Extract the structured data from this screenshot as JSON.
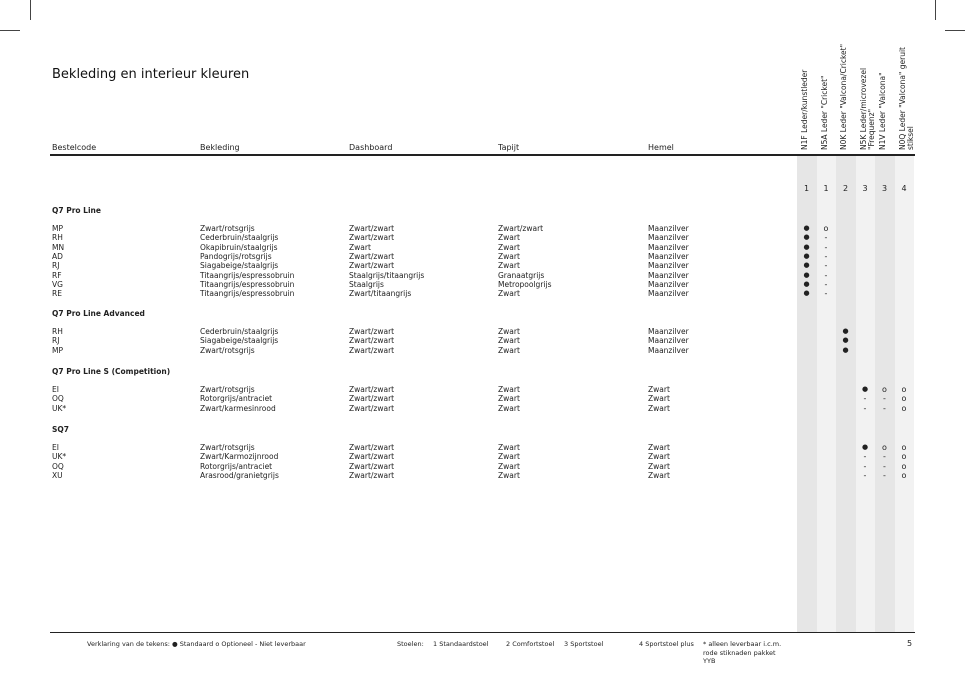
{
  "title": "Bekleding en interieur kleuren",
  "headers": [
    "Bestelcode",
    "Bekleding",
    "Dashboard",
    "Tapijt",
    "Hemel"
  ],
  "option_columns": [
    {
      "label": "N1F Leder/kunstleder",
      "seat": "1"
    },
    {
      "label": "N5A Leder \"Cricket\"",
      "seat": "1"
    },
    {
      "label": "N0K Leder \"Valcona/Cricket\"",
      "seat": "2"
    },
    {
      "label": "N5K Leder/microvezel\n\"Frequenz\"",
      "seat": "3"
    },
    {
      "label": "N1V Leder \"Valcona\"",
      "seat": "3"
    },
    {
      "label": "N0Q Leder \"Valcona\" geruit\nstiksel",
      "seat": "4"
    }
  ],
  "groups": [
    {
      "name": "Q7 Pro Line",
      "rows": [
        {
          "code": "MP",
          "bekleding": "Zwart/rotsgrijs",
          "dashboard": "Zwart/zwart",
          "tapijt": "Zwart/zwart",
          "hemel": "Maanzilver",
          "marks": [
            "●",
            "o",
            "",
            "",
            "",
            ""
          ]
        },
        {
          "code": "RH",
          "bekleding": "Cederbruin/staalgrijs",
          "dashboard": "Zwart/zwart",
          "tapijt": "Zwart",
          "hemel": "Maanzilver",
          "marks": [
            "●",
            "-",
            "",
            "",
            "",
            ""
          ]
        },
        {
          "code": "MN",
          "bekleding": "Okapibruin/staalgrijs",
          "dashboard": "Zwart",
          "tapijt": "Zwart",
          "hemel": "Maanzilver",
          "marks": [
            "●",
            "-",
            "",
            "",
            "",
            ""
          ]
        },
        {
          "code": "AD",
          "bekleding": "Pandogrijs/rotsgrijs",
          "dashboard": "Zwart/zwart",
          "tapijt": "Zwart",
          "hemel": "Maanzilver",
          "marks": [
            "●",
            "-",
            "",
            "",
            "",
            ""
          ]
        },
        {
          "code": "RJ",
          "bekleding": "Siagabeige/staalgrijs",
          "dashboard": "Zwart/zwart",
          "tapijt": "Zwart",
          "hemel": "Maanzilver",
          "marks": [
            "●",
            "-",
            "",
            "",
            "",
            ""
          ]
        },
        {
          "code": "RF",
          "bekleding": "Titaangrijs/espressobruin",
          "dashboard": "Staalgrijs/titaangrijs",
          "tapijt": "Granaatgrijs",
          "hemel": "Maanzilver",
          "marks": [
            "●",
            "-",
            "",
            "",
            "",
            ""
          ]
        },
        {
          "code": "VG",
          "bekleding": "Titaangrijs/espressobruin",
          "dashboard": "Staalgrijs",
          "tapijt": "Metropoolgrijs",
          "hemel": "Maanzilver",
          "marks": [
            "●",
            "-",
            "",
            "",
            "",
            ""
          ]
        },
        {
          "code": "RE",
          "bekleding": "Titaangrijs/espressobruin",
          "dashboard": "Zwart/titaangrijs",
          "tapijt": "Zwart",
          "hemel": "Maanzilver",
          "marks": [
            "●",
            "-",
            "",
            "",
            "",
            ""
          ]
        }
      ]
    },
    {
      "name": "Q7 Pro Line Advanced",
      "rows": [
        {
          "code": "RH",
          "bekleding": "Cederbruin/staalgrijs",
          "dashboard": "Zwart/zwart",
          "tapijt": "Zwart",
          "hemel": "Maanzilver",
          "marks": [
            "",
            "",
            "●",
            "",
            "",
            ""
          ]
        },
        {
          "code": "RJ",
          "bekleding": "Siagabeige/staalgrijs",
          "dashboard": "Zwart/zwart",
          "tapijt": "Zwart",
          "hemel": "Maanzilver",
          "marks": [
            "",
            "",
            "●",
            "",
            "",
            ""
          ]
        },
        {
          "code": "MP",
          "bekleding": "Zwart/rotsgrijs",
          "dashboard": "Zwart/zwart",
          "tapijt": "Zwart",
          "hemel": "Maanzilver",
          "marks": [
            "",
            "",
            "●",
            "",
            "",
            ""
          ]
        }
      ]
    },
    {
      "name": "Q7 Pro Line S (Competition)",
      "rows": [
        {
          "code": "EI",
          "bekleding": "Zwart/rotsgrijs",
          "dashboard": "Zwart/zwart",
          "tapijt": "Zwart",
          "hemel": "Zwart",
          "marks": [
            "",
            "",
            "",
            "●",
            "o",
            "o"
          ]
        },
        {
          "code": "OQ",
          "bekleding": "Rotorgrijs/antraciet",
          "dashboard": "Zwart/zwart",
          "tapijt": "Zwart",
          "hemel": "Zwart",
          "marks": [
            "",
            "",
            "",
            "-",
            "-",
            "o"
          ]
        },
        {
          "code": "UK*",
          "bekleding": "Zwart/karmesinrood",
          "dashboard": "Zwart/zwart",
          "tapijt": "Zwart",
          "hemel": "Zwart",
          "marks": [
            "",
            "",
            "",
            "-",
            "-",
            "o"
          ]
        }
      ]
    },
    {
      "name": "SQ7",
      "rows": [
        {
          "code": "EI",
          "bekleding": "Zwart/rotsgrijs",
          "dashboard": "Zwart/zwart",
          "tapijt": "Zwart",
          "hemel": "Zwart",
          "marks": [
            "",
            "",
            "",
            "●",
            "o",
            "o"
          ]
        },
        {
          "code": "UK*",
          "bekleding": "Zwart/Karmozijnrood",
          "dashboard": "Zwart/zwart",
          "tapijt": "Zwart",
          "hemel": "Zwart",
          "marks": [
            "",
            "",
            "",
            "-",
            "-",
            "o"
          ]
        },
        {
          "code": "OQ",
          "bekleding": "Rotorgrijs/antraciet",
          "dashboard": "Zwart/zwart",
          "tapijt": "Zwart",
          "hemel": "Zwart",
          "marks": [
            "",
            "",
            "",
            "-",
            "-",
            "o"
          ]
        },
        {
          "code": "XU",
          "bekleding": "Arasrood/granietgrijs",
          "dashboard": "Zwart/zwart",
          "tapijt": "Zwart",
          "hemel": "Zwart",
          "marks": [
            "",
            "",
            "",
            "-",
            "-",
            "o"
          ]
        }
      ]
    }
  ],
  "footer": {
    "legend": "Verklaring van de tekens:  ● Standaard  o Optioneel  - Niet leverbaar",
    "seats_label": "Stoelen:",
    "seat1": "1 Standaardstoel",
    "seat2": "2 Comfortstoel",
    "seat3": "3 Sportstoel",
    "seat4": "4 Sportstoel plus",
    "note": "* alleen leverbaar i.c.m.\nrode stiknaden pakket\nYYB",
    "page": "5"
  },
  "colors": {
    "stripe_dark": "#e6e6e6",
    "stripe_light": "#f2f2f2",
    "text": "#222222"
  }
}
